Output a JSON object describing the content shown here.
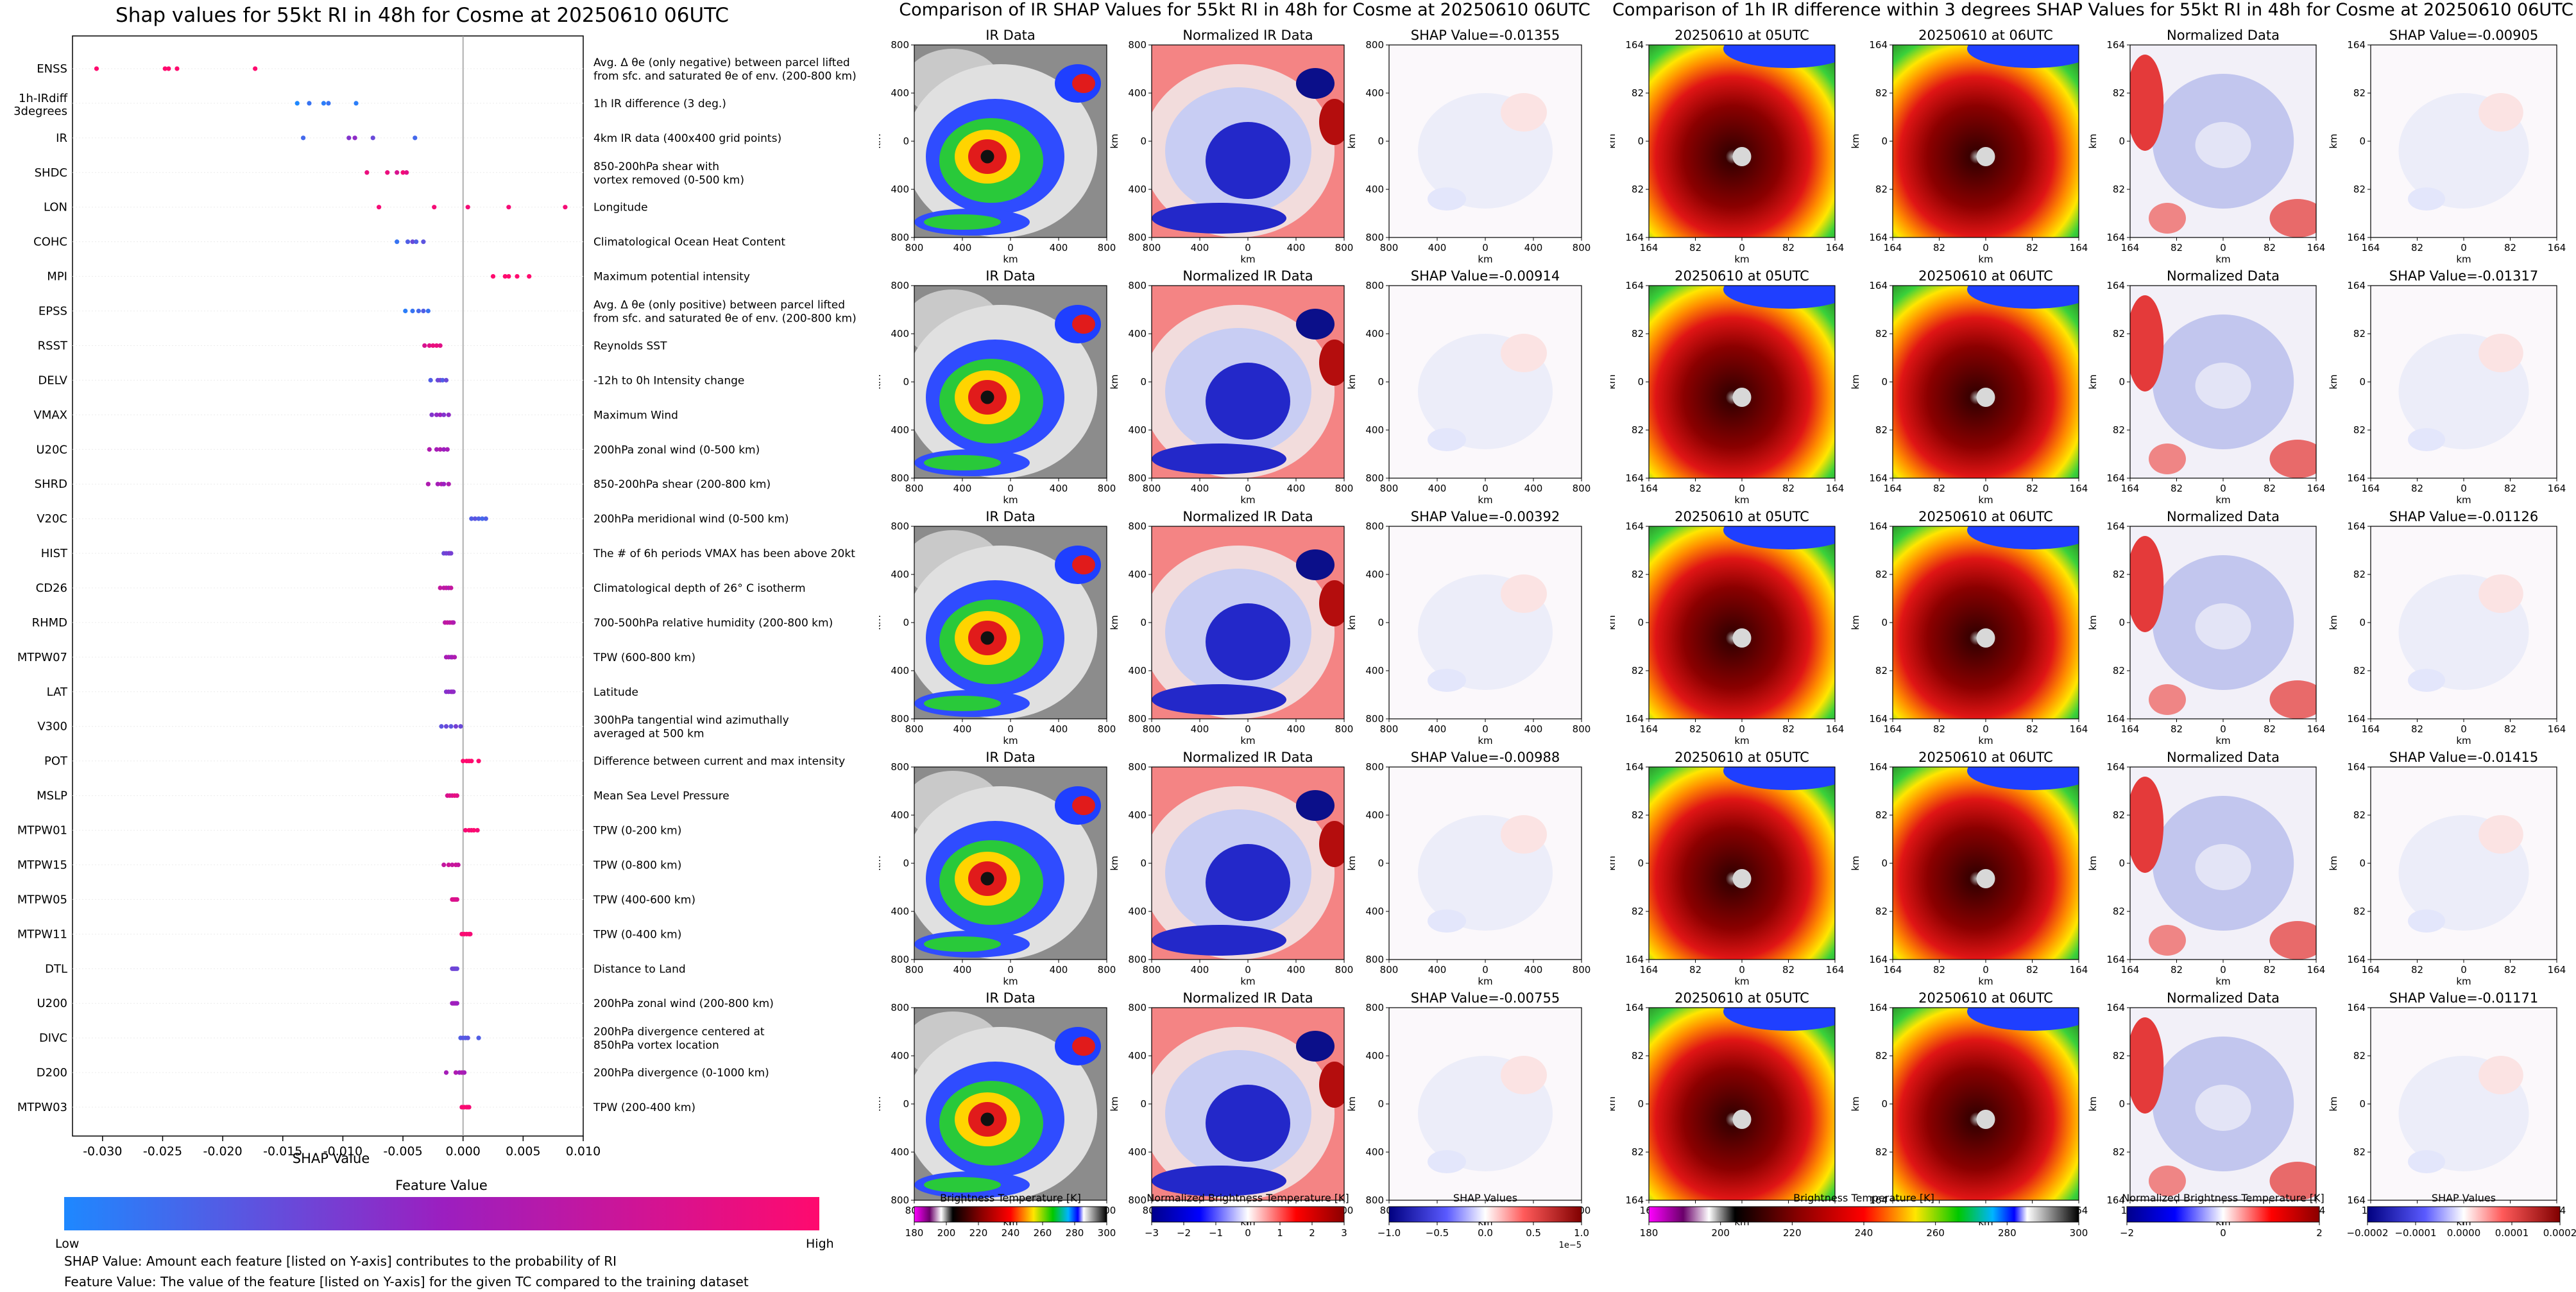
{
  "left_panel": {
    "title": "Shap values for 55kt RI in 48h for Cosme at 20250610 06UTC",
    "colorbar_title": "Feature Value",
    "colorbar_low": "Low",
    "colorbar_high": "High",
    "note1": "SHAP Value: Amount each feature [listed on Y-axis] contributes to the probability of RI",
    "note2": "Feature Value: The value of the feature [listed on Y-axis] for the given TC compared to the training dataset",
    "colors": {
      "low": "#1e88ff",
      "mid": "#9b1fc0",
      "high": "#ff0a6e"
    }
  },
  "chart_data": {
    "type": "scatter",
    "title": "Shap values for 55kt RI in 48h for Cosme at 20250610 06UTC",
    "xlabel": "SHAP Value",
    "xlim": [
      -0.0325,
      0.01
    ],
    "xticks": [
      "-0.030",
      "-0.025",
      "-0.020",
      "-0.015",
      "-0.010",
      "-0.005",
      "0.000",
      "0.005",
      "0.010"
    ],
    "tick_values": [
      -0.03,
      -0.025,
      -0.02,
      -0.015,
      -0.01,
      -0.005,
      0,
      0.005,
      0.01
    ],
    "features": [
      {
        "name": "ENSS",
        "desc": [
          "Avg. Δ θe (only negative) between parcel lifted",
          "from sfc. and saturated θe of env. (200-800 km)"
        ],
        "points": [
          [
            -0.0305,
            1
          ],
          [
            -0.0248,
            1
          ],
          [
            -0.0245,
            1
          ],
          [
            -0.0238,
            1
          ],
          [
            -0.0173,
            1
          ]
        ]
      },
      {
        "name": "1h-IRdiff 3degrees",
        "desc": [
          "1h IR difference (3 deg.)"
        ],
        "points": [
          [
            -0.0138,
            0
          ],
          [
            -0.0128,
            0.1
          ],
          [
            -0.0116,
            0.05
          ],
          [
            -0.0112,
            0.1
          ],
          [
            -0.0089,
            0.05
          ]
        ]
      },
      {
        "name": "IR",
        "desc": [
          "4km IR data (400x400 grid points)"
        ],
        "points": [
          [
            -0.0133,
            0.15
          ],
          [
            -0.0095,
            0.4
          ],
          [
            -0.009,
            0.45
          ],
          [
            -0.0075,
            0.3
          ],
          [
            -0.004,
            0.15
          ]
        ]
      },
      {
        "name": "SHDC",
        "desc": [
          "850-200hPa shear with",
          "vortex removed (0-500 km)"
        ],
        "points": [
          [
            -0.008,
            0.9
          ],
          [
            -0.0063,
            0.9
          ],
          [
            -0.0055,
            0.8
          ],
          [
            -0.005,
            0.95
          ],
          [
            -0.0047,
            0.85
          ]
        ]
      },
      {
        "name": "LON",
        "desc": [
          "Longitude"
        ],
        "points": [
          [
            -0.007,
            0.95
          ],
          [
            -0.0024,
            0.95
          ],
          [
            0.0004,
            0.95
          ],
          [
            0.0038,
            0.95
          ],
          [
            0.0085,
            0.95
          ]
        ]
      },
      {
        "name": "COHC",
        "desc": [
          "Climatological Ocean Heat Content"
        ],
        "points": [
          [
            -0.0055,
            0.1
          ],
          [
            -0.0046,
            0.2
          ],
          [
            -0.0042,
            0.3
          ],
          [
            -0.0039,
            0.2
          ],
          [
            -0.0033,
            0.25
          ]
        ]
      },
      {
        "name": "MPI",
        "desc": [
          "Maximum potential intensity"
        ],
        "points": [
          [
            0.0025,
            1
          ],
          [
            0.0035,
            1
          ],
          [
            0.0038,
            1
          ],
          [
            0.0045,
            1
          ],
          [
            0.0055,
            1
          ]
        ]
      },
      {
        "name": "EPSS",
        "desc": [
          "Avg. Δ θe (only positive) between parcel lifted",
          "from sfc. and saturated θe of env. (200-800 km)"
        ],
        "points": [
          [
            -0.0048,
            0.05
          ],
          [
            -0.0042,
            0.1
          ],
          [
            -0.0037,
            0.15
          ],
          [
            -0.0033,
            0.2
          ],
          [
            -0.0029,
            0.1
          ]
        ]
      },
      {
        "name": "RSST",
        "desc": [
          "Reynolds SST"
        ],
        "points": [
          [
            -0.0032,
            0.8
          ],
          [
            -0.0028,
            0.85
          ],
          [
            -0.0025,
            0.9
          ],
          [
            -0.0022,
            0.9
          ],
          [
            -0.0019,
            0.85
          ]
        ]
      },
      {
        "name": "DELV",
        "desc": [
          "-12h to 0h Intensity change"
        ],
        "points": [
          [
            -0.0027,
            0.2
          ],
          [
            -0.0021,
            0.3
          ],
          [
            -0.0019,
            0.35
          ],
          [
            -0.0017,
            0.2
          ],
          [
            -0.0014,
            0.3
          ]
        ]
      },
      {
        "name": "VMAX",
        "desc": [
          "Maximum Wind"
        ],
        "points": [
          [
            -0.0026,
            0.4
          ],
          [
            -0.0022,
            0.45
          ],
          [
            -0.0019,
            0.5
          ],
          [
            -0.0016,
            0.4
          ],
          [
            -0.0012,
            0.45
          ]
        ]
      },
      {
        "name": "U20C",
        "desc": [
          "200hPa zonal wind (0-500 km)"
        ],
        "points": [
          [
            -0.0028,
            0.6
          ],
          [
            -0.0022,
            0.55
          ],
          [
            -0.0019,
            0.6
          ],
          [
            -0.0016,
            0.5
          ],
          [
            -0.0013,
            0.55
          ]
        ]
      },
      {
        "name": "SHRD",
        "desc": [
          "850-200hPa shear (200-800 km)"
        ],
        "points": [
          [
            -0.0029,
            0.6
          ],
          [
            -0.0021,
            0.55
          ],
          [
            -0.0018,
            0.6
          ],
          [
            -0.0016,
            0.5
          ],
          [
            -0.0012,
            0.6
          ]
        ]
      },
      {
        "name": "V20C",
        "desc": [
          "200hPa meridional wind (0-500 km)"
        ],
        "points": [
          [
            0.0007,
            0.2
          ],
          [
            0.001,
            0.25
          ],
          [
            0.0013,
            0.2
          ],
          [
            0.0016,
            0.15
          ],
          [
            0.0019,
            0.2
          ]
        ]
      },
      {
        "name": "HIST",
        "desc": [
          "The # of 6h periods VMAX has been above 20kt"
        ],
        "points": [
          [
            -0.0016,
            0.3
          ],
          [
            -0.0014,
            0.35
          ],
          [
            -0.0012,
            0.3
          ],
          [
            -0.0011,
            0.4
          ],
          [
            -0.001,
            0.35
          ]
        ]
      },
      {
        "name": "CD26",
        "desc": [
          "Climatological depth of 26° C isotherm"
        ],
        "points": [
          [
            -0.0019,
            0.7
          ],
          [
            -0.0016,
            0.65
          ],
          [
            -0.0014,
            0.7
          ],
          [
            -0.0012,
            0.6
          ],
          [
            -0.001,
            0.7
          ]
        ]
      },
      {
        "name": "RHMD",
        "desc": [
          "700-500hPa relative humidity (200-800 km)"
        ],
        "points": [
          [
            -0.0015,
            0.65
          ],
          [
            -0.0013,
            0.7
          ],
          [
            -0.0011,
            0.65
          ],
          [
            -0.0009,
            0.7
          ],
          [
            -0.0008,
            0.6
          ]
        ]
      },
      {
        "name": "MTPW07",
        "desc": [
          "TPW (600-800 km)"
        ],
        "points": [
          [
            -0.0014,
            0.55
          ],
          [
            -0.0012,
            0.6
          ],
          [
            -0.001,
            0.5
          ],
          [
            -0.0009,
            0.55
          ],
          [
            -0.0007,
            0.6
          ]
        ]
      },
      {
        "name": "LAT",
        "desc": [
          "Latitude"
        ],
        "points": [
          [
            -0.0014,
            0.4
          ],
          [
            -0.0012,
            0.45
          ],
          [
            -0.001,
            0.4
          ],
          [
            -0.0009,
            0.5
          ],
          [
            -0.0008,
            0.45
          ]
        ]
      },
      {
        "name": "V300",
        "desc": [
          "300hPa tangential wind azimuthally",
          "averaged at 500 km"
        ],
        "points": [
          [
            -0.0018,
            0.25
          ],
          [
            -0.0014,
            0.3
          ],
          [
            -0.001,
            0.25
          ],
          [
            -0.0006,
            0.35
          ],
          [
            -0.0002,
            0.3
          ]
        ]
      },
      {
        "name": "POT",
        "desc": [
          "Difference between current and max intensity"
        ],
        "points": [
          [
            0.0,
            1
          ],
          [
            0.0003,
            1
          ],
          [
            0.0005,
            1
          ],
          [
            0.0007,
            1
          ],
          [
            0.0013,
            1
          ]
        ]
      },
      {
        "name": "MSLP",
        "desc": [
          "Mean Sea Level Pressure"
        ],
        "points": [
          [
            -0.0013,
            0.8
          ],
          [
            -0.0011,
            0.85
          ],
          [
            -0.0009,
            0.8
          ],
          [
            -0.0007,
            0.9
          ],
          [
            -0.0005,
            0.85
          ]
        ]
      },
      {
        "name": "MTPW01",
        "desc": [
          "TPW (0-200 km)"
        ],
        "points": [
          [
            0.0002,
            0.95
          ],
          [
            0.0005,
            1
          ],
          [
            0.0007,
            0.95
          ],
          [
            0.0009,
            1
          ],
          [
            0.0012,
            0.95
          ]
        ]
      },
      {
        "name": "MTPW15",
        "desc": [
          "TPW (0-800 km)"
        ],
        "points": [
          [
            -0.0016,
            0.7
          ],
          [
            -0.0012,
            0.75
          ],
          [
            -0.0009,
            0.7
          ],
          [
            -0.0006,
            0.75
          ],
          [
            -0.0004,
            0.7
          ]
        ]
      },
      {
        "name": "MTPW05",
        "desc": [
          "TPW (400-600 km)"
        ],
        "points": [
          [
            -0.0009,
            0.8
          ],
          [
            -0.0008,
            0.85
          ],
          [
            -0.0007,
            0.8
          ],
          [
            -0.0006,
            0.85
          ],
          [
            -0.0005,
            0.8
          ]
        ]
      },
      {
        "name": "MTPW11",
        "desc": [
          "TPW (0-400 km)"
        ],
        "points": [
          [
            -0.0001,
            0.95
          ],
          [
            0.0001,
            1
          ],
          [
            0.0003,
            0.95
          ],
          [
            0.0005,
            1
          ],
          [
            0.0006,
            0.95
          ]
        ]
      },
      {
        "name": "DTL",
        "desc": [
          "Distance to Land"
        ],
        "points": [
          [
            -0.0009,
            0.3
          ],
          [
            -0.0008,
            0.35
          ],
          [
            -0.0007,
            0.3
          ],
          [
            -0.0006,
            0.35
          ],
          [
            -0.0005,
            0.3
          ]
        ]
      },
      {
        "name": "U200",
        "desc": [
          "200hPa zonal wind (200-800 km)"
        ],
        "points": [
          [
            -0.0009,
            0.5
          ],
          [
            -0.0008,
            0.55
          ],
          [
            -0.0007,
            0.5
          ],
          [
            -0.0006,
            0.55
          ],
          [
            -0.0005,
            0.5
          ]
        ]
      },
      {
        "name": "DIVC",
        "desc": [
          "200hPa divergence centered at",
          "850hPa vortex location"
        ],
        "points": [
          [
            -0.0002,
            0.2
          ],
          [
            0.0,
            0.25
          ],
          [
            0.0002,
            0.2
          ],
          [
            0.0004,
            0.25
          ],
          [
            0.0013,
            0.2
          ]
        ]
      },
      {
        "name": "D200",
        "desc": [
          "200hPa divergence (0-1000 km)"
        ],
        "points": [
          [
            -0.0014,
            0.55
          ],
          [
            -0.0006,
            0.6
          ],
          [
            -0.0003,
            0.5
          ],
          [
            -0.0001,
            0.6
          ],
          [
            0.0001,
            0.55
          ]
        ]
      },
      {
        "name": "MTPW03",
        "desc": [
          "TPW (200-400 km)"
        ],
        "points": [
          [
            -0.0001,
            0.95
          ],
          [
            0.0001,
            1
          ],
          [
            0.0003,
            0.95
          ],
          [
            0.0004,
            1
          ],
          [
            0.0005,
            0.95
          ]
        ]
      }
    ]
  },
  "ir_panel": {
    "title": "Comparison of IR SHAP Values for 55kt RI in 48h for Cosme at 20250610 06UTC",
    "col_titles": [
      "IR Data",
      "Normalized IR Data"
    ],
    "shap_titles": [
      "SHAP Value=-0.01355",
      "SHAP Value=-0.00914",
      "SHAP Value=-0.00392",
      "SHAP Value=-0.00988",
      "SHAP Value=-0.00755"
    ],
    "xticks": [
      "800",
      "400",
      "0",
      "400",
      "800"
    ],
    "yticks": [
      "800",
      "400",
      "0",
      "400",
      "800"
    ],
    "axis_label": "km",
    "colorbars": [
      {
        "label": "Brightness Temperature [K]",
        "ticks": [
          "180",
          "200",
          "220",
          "240",
          "260",
          "280",
          "300"
        ]
      },
      {
        "label": "Normalized Brightness Temperature [K]",
        "ticks": [
          "−3",
          "−2",
          "−1",
          "0",
          "1",
          "2",
          "3"
        ]
      },
      {
        "label": "SHAP Values",
        "ticks": [
          "−1.0",
          "−0.5",
          "0.0",
          "0.5",
          "1.0"
        ],
        "exponent": "1e−5"
      }
    ]
  },
  "diff_panel": {
    "title": "Comparison of 1h IR difference within 3 degrees SHAP Values for 55kt RI in 48h for Cosme at 20250610 06UTC",
    "col_titles": [
      "20250610 at 05UTC",
      "20250610 at 06UTC",
      "Normalized Data"
    ],
    "shap_titles": [
      "SHAP Value=-0.00905",
      "SHAP Value=-0.01317",
      "SHAP Value=-0.01126",
      "SHAP Value=-0.01415",
      "SHAP Value=-0.01171"
    ],
    "xticks": [
      "164",
      "82",
      "0",
      "82",
      "164"
    ],
    "yticks": [
      "164",
      "82",
      "0",
      "82",
      "164"
    ],
    "axis_label": "km",
    "colorbars": [
      {
        "label": "Brightness Temperature [K]",
        "ticks": [
          "180",
          "200",
          "220",
          "240",
          "260",
          "280",
          "300"
        ]
      },
      {
        "label": "Normalized Brightness Temperature [K]",
        "ticks": [
          "−2",
          "0",
          "2"
        ]
      },
      {
        "label": "SHAP Values",
        "ticks": [
          "−0.0002",
          "−0.0001",
          "0.0000",
          "0.0001",
          "0.0002"
        ]
      }
    ]
  }
}
